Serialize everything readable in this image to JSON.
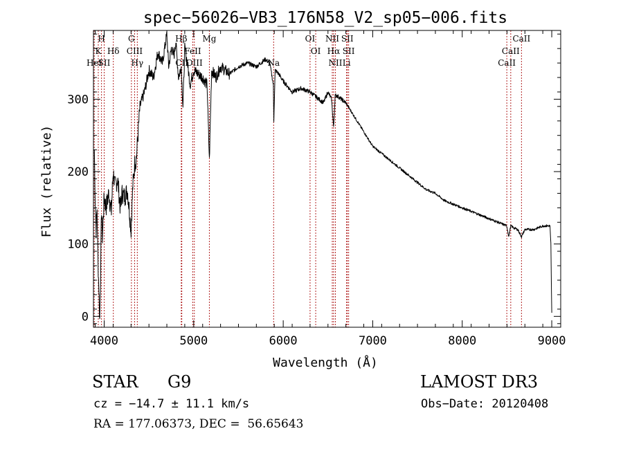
{
  "chart_data": {
    "type": "line",
    "title": "spec−56026−VB3_176N58_V2_sp05−006.fits",
    "xlabel": "Wavelength (Å)",
    "ylabel": "Flux (relative)",
    "xlim": [
      3880,
      9100
    ],
    "ylim": [
      -15,
      395
    ],
    "xticks": [
      4000,
      5000,
      6000,
      7000,
      8000,
      9000
    ],
    "yticks": [
      0,
      100,
      200,
      300
    ],
    "series": [
      {
        "name": "flux",
        "x": [
          3890,
          3900,
          3910,
          3920,
          3930,
          3940,
          3950,
          3960,
          3970,
          3980,
          4000,
          4020,
          4050,
          4080,
          4100,
          4120,
          4150,
          4180,
          4200,
          4230,
          4260,
          4300,
          4320,
          4340,
          4360,
          4400,
          4450,
          4500,
          4550,
          4600,
          4650,
          4700,
          4720,
          4750,
          4780,
          4800,
          4830,
          4860,
          4880,
          4900,
          4930,
          4960,
          5000,
          5050,
          5100,
          5150,
          5175,
          5200,
          5250,
          5300,
          5400,
          5500,
          5600,
          5700,
          5800,
          5850,
          5890,
          5895,
          5910,
          5950,
          6000,
          6100,
          6200,
          6300,
          6400,
          6450,
          6500,
          6540,
          6563,
          6580,
          6600,
          6650,
          6700,
          6750,
          6800,
          6900,
          7000,
          7100,
          7200,
          7300,
          7400,
          7500,
          7600,
          7700,
          7800,
          7900,
          8000,
          8100,
          8200,
          8300,
          8400,
          8498,
          8520,
          8542,
          8580,
          8620,
          8662,
          8700,
          8800,
          8900,
          8950,
          8980,
          8990,
          9000
        ],
        "y": [
          230,
          160,
          120,
          150,
          80,
          40,
          -5,
          60,
          150,
          110,
          165,
          150,
          170,
          145,
          200,
          180,
          190,
          150,
          170,
          165,
          175,
          120,
          180,
          210,
          220,
          290,
          310,
          340,
          330,
          365,
          350,
          390,
          345,
          370,
          360,
          380,
          330,
          345,
          290,
          370,
          350,
          320,
          340,
          335,
          330,
          320,
          215,
          340,
          330,
          345,
          335,
          345,
          350,
          345,
          355,
          350,
          320,
          270,
          340,
          335,
          325,
          310,
          315,
          310,
          300,
          295,
          310,
          300,
          260,
          305,
          305,
          300,
          295,
          285,
          275,
          255,
          235,
          225,
          215,
          205,
          195,
          185,
          175,
          170,
          160,
          155,
          150,
          145,
          140,
          135,
          130,
          125,
          110,
          125,
          122,
          120,
          110,
          120,
          120,
          125,
          125,
          125,
          100,
          5
        ]
      }
    ],
    "lines": [
      {
        "name": "H",
        "wl": 3970,
        "row": 0
      },
      {
        "name": "K",
        "wl": 3934,
        "row": 1
      },
      {
        "name": "HeI",
        "wl": 3889,
        "row": 2
      },
      {
        "name": "SII",
        "wl": 4000,
        "row": 2
      },
      {
        "name": "Hδ",
        "wl": 4102,
        "row": 1
      },
      {
        "name": "G",
        "wl": 4304,
        "row": 0
      },
      {
        "name": "CIII",
        "wl": 4340,
        "row": 1
      },
      {
        "name": "Hγ",
        "wl": 4370,
        "row": 2
      },
      {
        "name": "Hβ",
        "wl": 4861,
        "row": 0
      },
      {
        "name": "CII",
        "wl": 4867,
        "row": 2
      },
      {
        "name": "FeII",
        "wl": 4990,
        "row": 1
      },
      {
        "name": "OIII",
        "wl": 5007,
        "row": 2
      },
      {
        "name": "Mg",
        "wl": 5175,
        "row": 0
      },
      {
        "name": "Na",
        "wl": 5893,
        "row": 2
      },
      {
        "name": "OI",
        "wl": 6300,
        "row": 0
      },
      {
        "name": "OI",
        "wl": 6363,
        "row": 1
      },
      {
        "name": "NII",
        "wl": 6548,
        "row": 0
      },
      {
        "name": "Hα",
        "wl": 6563,
        "row": 1
      },
      {
        "name": "NII",
        "wl": 6583,
        "row": 2
      },
      {
        "name": "SII",
        "wl": 6716,
        "row": 0
      },
      {
        "name": "SII",
        "wl": 6731,
        "row": 1
      },
      {
        "name": "Li",
        "wl": 6708,
        "row": 2
      },
      {
        "name": "CaII",
        "wl": 8498,
        "row": 2
      },
      {
        "name": "CaII",
        "wl": 8542,
        "row": 1
      },
      {
        "name": "CaII",
        "wl": 8662,
        "row": 0
      }
    ]
  },
  "info": {
    "obj_class": "STAR",
    "subclass": "G9",
    "survey": "LAMOST DR3",
    "cz": "cz = −14.7 ± 11.1 km/s",
    "obsdate": "Obs−Date: 20120408",
    "radec": "RA = 177.06373, DEC =  56.65643"
  },
  "colors": {
    "spectrum": "#000000",
    "line_marker": "#b22222",
    "axes": "#000000"
  }
}
